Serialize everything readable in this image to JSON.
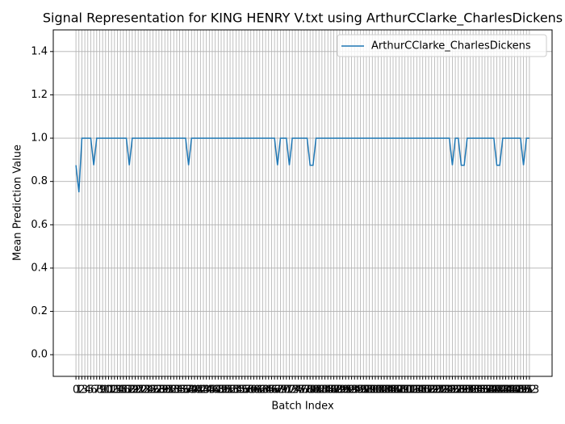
{
  "chart_data": {
    "type": "line",
    "title": "Signal Representation for KING HENRY V.txt using ArthurCClarke_CharlesDickens",
    "x_label": "Batch Index",
    "y_label": "Mean Prediction Value",
    "x": [
      0,
      1,
      2,
      3,
      4,
      5,
      6,
      7,
      8,
      9,
      10,
      11,
      12,
      13,
      14,
      15,
      16,
      17,
      18,
      19,
      20,
      21,
      22,
      23,
      24,
      25,
      26,
      27,
      28,
      29,
      30,
      31,
      32,
      33,
      34,
      35,
      36,
      37,
      38,
      39,
      40,
      41,
      42,
      43,
      44,
      45,
      46,
      47,
      48,
      49,
      50,
      51,
      52,
      53,
      54,
      55,
      56,
      57,
      58,
      59,
      60,
      61,
      62,
      63,
      64,
      65,
      66,
      67,
      68,
      69,
      70,
      71,
      72,
      73,
      74,
      75,
      76,
      77,
      78,
      79,
      80,
      81,
      82,
      83,
      84,
      85,
      86,
      87,
      88,
      89,
      90,
      91,
      92,
      93,
      94,
      95,
      96,
      97,
      98,
      99,
      100,
      101,
      102,
      103,
      104,
      105,
      106,
      107,
      108,
      109,
      110,
      111,
      112,
      113,
      114,
      115,
      116,
      117,
      118,
      119,
      120,
      121,
      122,
      123,
      124,
      125,
      126,
      127,
      128,
      129,
      130,
      131,
      132,
      133,
      134,
      135,
      136,
      137,
      138,
      139,
      140,
      141,
      142,
      143,
      144,
      145,
      146,
      147,
      148,
      149,
      150,
      151,
      152,
      153
    ],
    "series": [
      {
        "name": "ArthurCClarke_CharlesDickens",
        "color": "#1f77b4",
        "values": [
          0.875,
          0.75,
          1,
          1,
          1,
          1,
          0.875,
          1,
          1,
          1,
          1,
          1,
          1,
          1,
          1,
          1,
          1,
          1,
          0.875,
          1,
          1,
          1,
          1,
          1,
          1,
          1,
          1,
          1,
          1,
          1,
          1,
          1,
          1,
          1,
          1,
          1,
          1,
          1,
          0.875,
          1,
          1,
          1,
          1,
          1,
          1,
          1,
          1,
          1,
          1,
          1,
          1,
          1,
          1,
          1,
          1,
          1,
          1,
          1,
          1,
          1,
          1,
          1,
          1,
          1,
          1,
          1,
          1,
          1,
          0.875,
          1,
          1,
          1,
          0.875,
          1,
          1,
          1,
          1,
          1,
          1,
          0.875,
          0.875,
          1,
          1,
          1,
          1,
          1,
          1,
          1,
          1,
          1,
          1,
          1,
          1,
          1,
          1,
          1,
          1,
          1,
          1,
          1,
          1,
          1,
          1,
          1,
          1,
          1,
          1,
          1,
          1,
          1,
          1,
          1,
          1,
          1,
          1,
          1,
          1,
          1,
          1,
          1,
          1,
          1,
          1,
          1,
          1,
          1,
          1,
          0.875,
          1,
          1,
          0.875,
          0.875,
          1,
          1,
          1,
          1,
          1,
          1,
          1,
          1,
          1,
          1,
          0.875,
          0.875,
          1,
          1,
          1,
          1,
          1,
          1,
          1,
          0.875,
          1,
          1
        ]
      }
    ],
    "xlim": [
      -7.65,
      160.65
    ],
    "xticks": [
      0,
      1,
      2,
      3,
      4,
      5,
      6,
      7,
      8,
      9,
      10,
      11,
      12,
      13,
      14,
      15,
      16,
      17,
      18,
      19,
      20,
      21,
      22,
      23,
      24,
      25,
      26,
      27,
      28,
      29,
      30,
      31,
      32,
      33,
      34,
      35,
      36,
      37,
      38,
      39,
      40,
      41,
      42,
      43,
      44,
      45,
      46,
      47,
      48,
      49,
      50,
      51,
      52,
      53,
      54,
      55,
      56,
      57,
      58,
      59,
      60,
      61,
      62,
      63,
      64,
      65,
      66,
      67,
      68,
      69,
      70,
      71,
      72,
      73,
      74,
      75,
      76,
      77,
      78,
      79,
      80,
      81,
      82,
      83,
      84,
      85,
      86,
      87,
      88,
      89,
      90,
      91,
      92,
      93,
      94,
      95,
      96,
      97,
      98,
      99,
      100,
      101,
      102,
      103,
      104,
      105,
      106,
      107,
      108,
      109,
      110,
      111,
      112,
      113,
      114,
      115,
      116,
      117,
      118,
      119,
      120,
      121,
      122,
      123,
      124,
      125,
      126,
      127,
      128,
      129,
      130,
      131,
      132,
      133,
      134,
      135,
      136,
      137,
      138,
      139,
      140,
      141,
      142,
      143,
      144,
      145,
      146,
      147,
      148,
      149,
      150,
      151,
      152,
      153
    ],
    "ylim": [
      -0.1,
      1.5
    ],
    "yticks": [
      {
        "value": 0,
        "label": "0.0"
      },
      {
        "value": 0.2,
        "label": "0.2"
      },
      {
        "value": 0.4,
        "label": "0.4"
      },
      {
        "value": 0.6,
        "label": "0.6"
      },
      {
        "value": 0.8,
        "label": "0.8"
      },
      {
        "value": 1,
        "label": "1.0"
      },
      {
        "value": 1.2,
        "label": "1.2"
      },
      {
        "value": 1.4,
        "label": "1.4"
      }
    ],
    "grid": true,
    "legend": "upper right"
  }
}
